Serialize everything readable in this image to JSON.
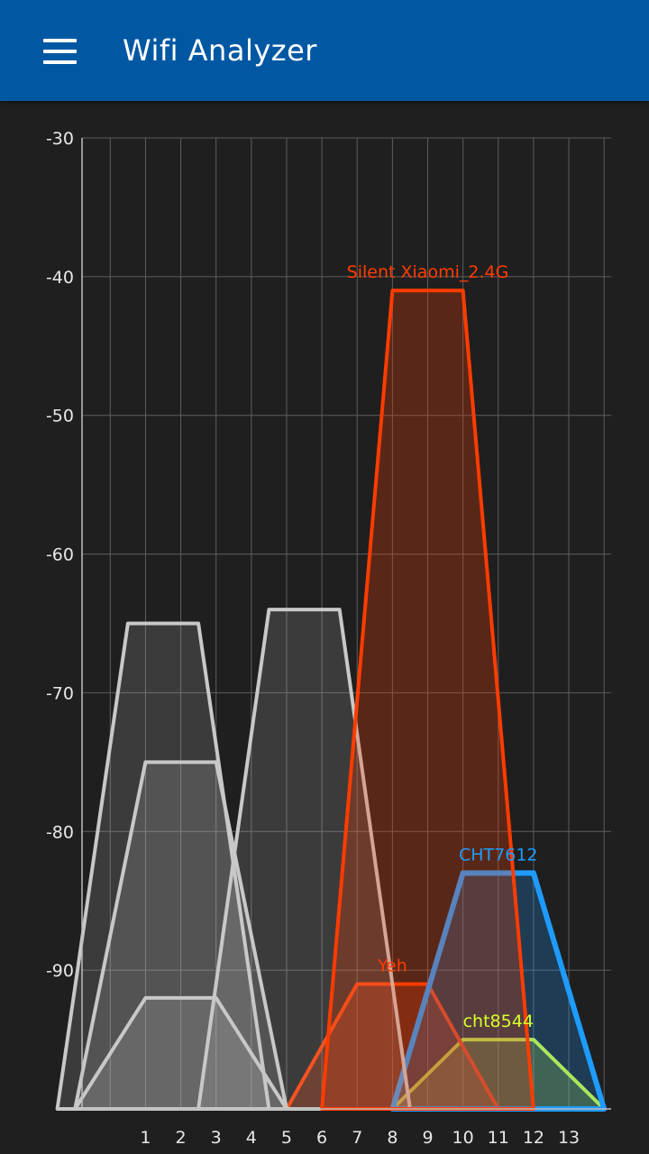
{
  "app_bar": {
    "title": "Wifi Analyzer",
    "menu_icon": "hamburger-menu-icon",
    "background_color": "#0058a3"
  },
  "chart_data": {
    "type": "area",
    "title": "",
    "xlabel": "",
    "ylabel": "",
    "x_ticks": [
      1,
      2,
      3,
      4,
      5,
      6,
      7,
      8,
      9,
      10,
      11,
      12,
      13
    ],
    "y_ticks": [
      -30,
      -40,
      -50,
      -60,
      -70,
      -80,
      -90
    ],
    "xlim": [
      -0.8,
      14.2
    ],
    "ylim": [
      -100,
      -30
    ],
    "grid": true,
    "legend": "none",
    "series": [
      {
        "name": "Silent Xiaomi_2.4G",
        "channel": 9,
        "signal_dbm": -41,
        "color": "#ff3c00",
        "labeled": true
      },
      {
        "name": "CHT7612",
        "channel": 11,
        "signal_dbm": -83,
        "color": "#1e9bff",
        "labeled": true
      },
      {
        "name": "Yeh",
        "channel": 8,
        "signal_dbm": -91,
        "color": "#ff3c00",
        "labeled": true
      },
      {
        "name": "cht8544",
        "channel": 11,
        "signal_dbm": -95,
        "color": "#d7ff2a",
        "labeled": true
      },
      {
        "channel": 5.5,
        "signal_dbm": -64,
        "color": "#c8c8c8",
        "labeled": false
      },
      {
        "channel": 1.5,
        "signal_dbm": -65,
        "color": "#c8c8c8",
        "labeled": false
      },
      {
        "channel": 2,
        "signal_dbm": -75,
        "color": "#c8c8c8",
        "labeled": false
      },
      {
        "channel": 2,
        "signal_dbm": -92,
        "color": "#c8c8c8",
        "labeled": false
      }
    ]
  }
}
